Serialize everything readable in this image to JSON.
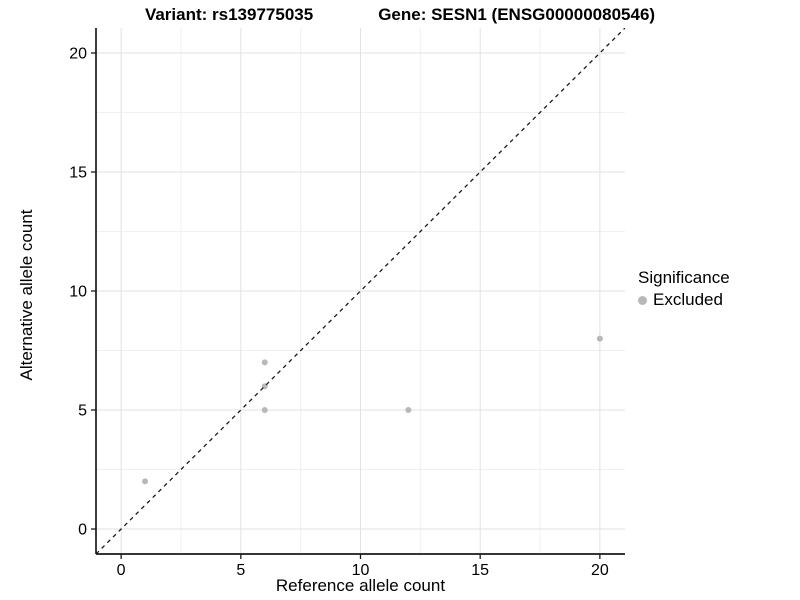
{
  "chart_data": {
    "type": "scatter",
    "title_variant": "Variant: rs139775035",
    "title_gene": "Gene: SESN1 (ENSG00000080546)",
    "xlabel": "Reference allele count",
    "ylabel": "Alternative allele count",
    "xlim": [
      -1.05,
      21.05
    ],
    "ylim": [
      -1.05,
      21.05
    ],
    "x_ticks": [
      0,
      5,
      10,
      15,
      20
    ],
    "y_ticks": [
      0,
      5,
      10,
      15,
      20
    ],
    "x_minor_ticks": [
      2.5,
      7.5,
      12.5,
      17.5
    ],
    "y_minor_ticks": [
      2.5,
      7.5,
      12.5,
      17.5
    ],
    "grid": true,
    "reference_line": {
      "type": "identity",
      "slope": 1,
      "intercept": 0,
      "style": "dashed",
      "color": "#1a1a1a"
    },
    "series": [
      {
        "name": "Excluded",
        "color": "#b8b8b8",
        "points": [
          [
            1,
            2
          ],
          [
            6,
            5
          ],
          [
            6,
            6
          ],
          [
            6,
            7
          ],
          [
            12,
            5
          ],
          [
            20,
            8
          ]
        ]
      }
    ],
    "legend": {
      "title": "Significance",
      "position": "right",
      "items": [
        {
          "label": "Excluded",
          "color": "#b8b8b8",
          "marker": "circle"
        }
      ]
    },
    "colors": {
      "background": "#ffffff",
      "grid_major": "#e2e2e2",
      "grid_minor": "#f0f0f0",
      "axis": "#1a1a1a",
      "text": "#000000"
    }
  }
}
